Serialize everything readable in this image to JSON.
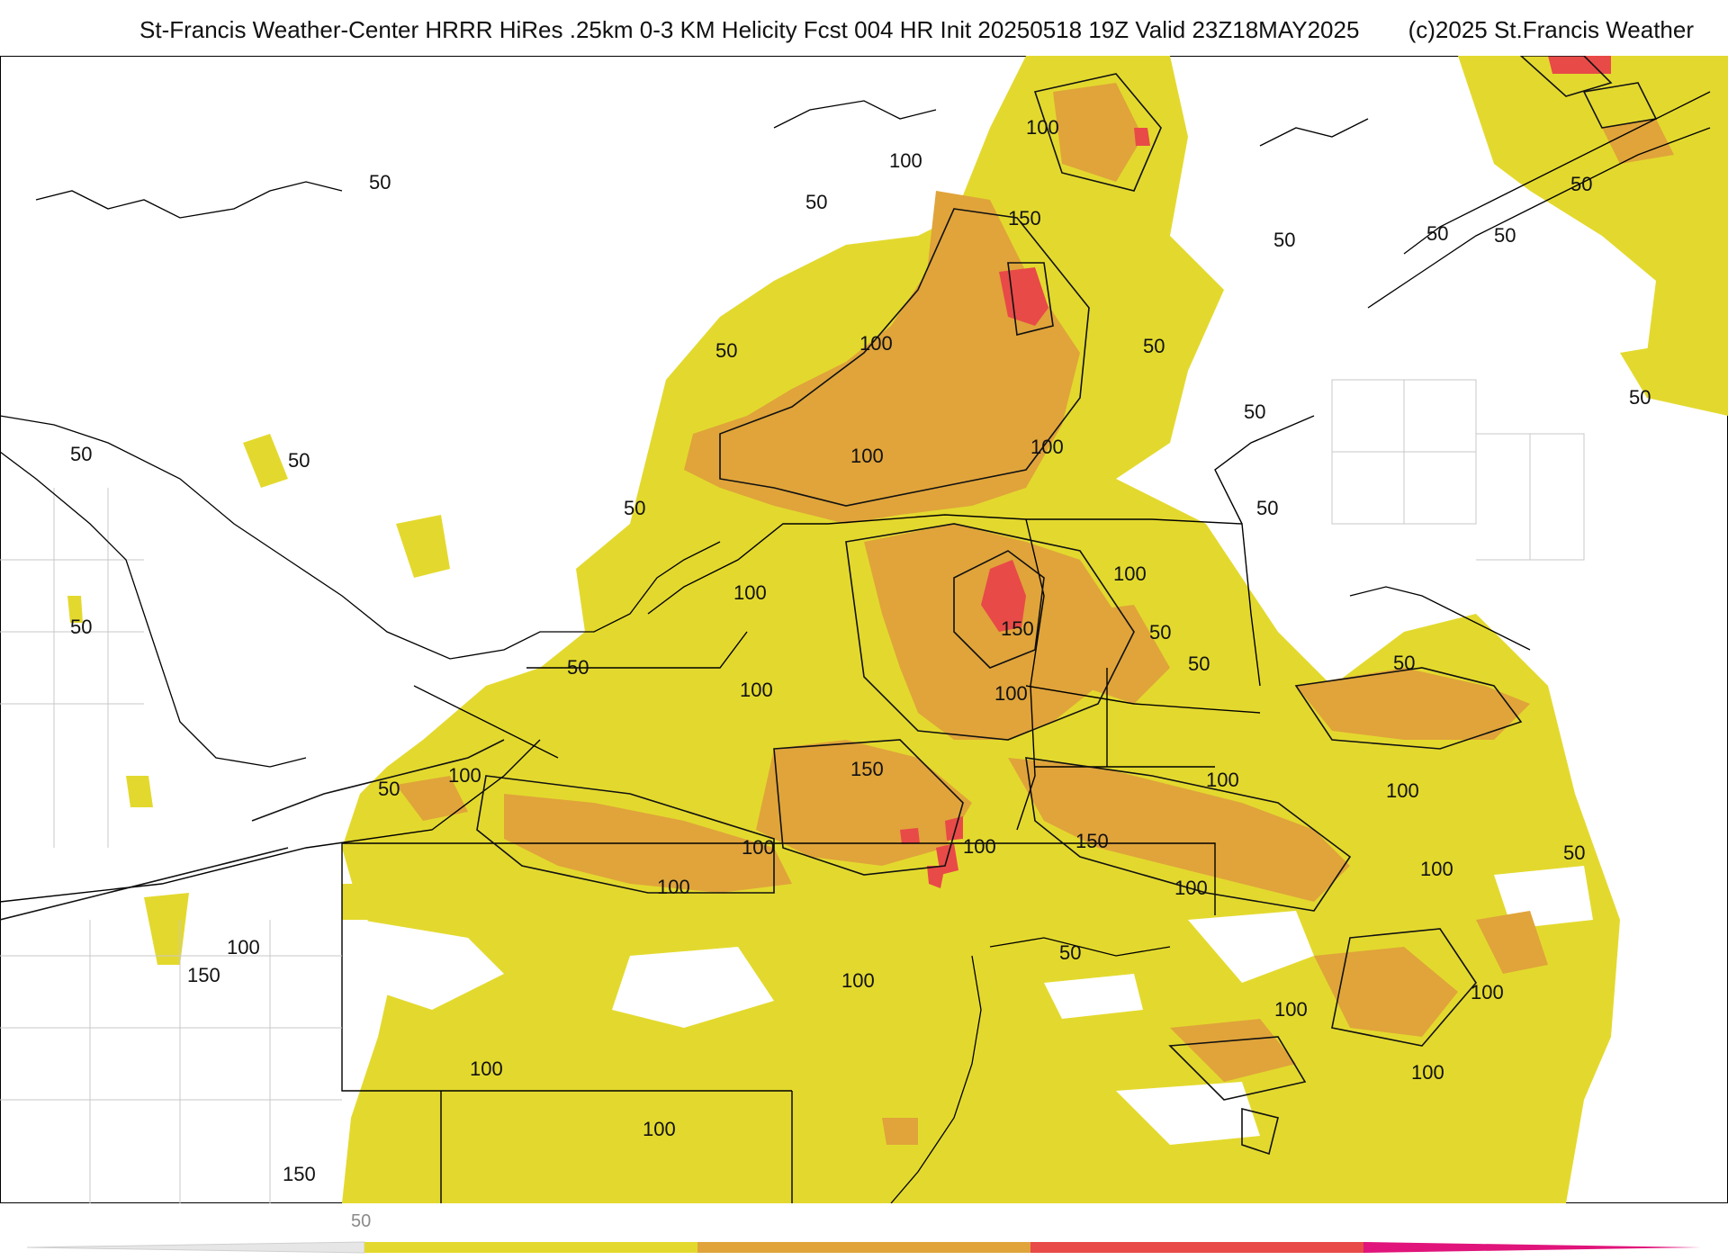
{
  "header": {
    "title": "St-Francis Weather-Center HRRR HiRes .25km 0-3 KM Helicity Fcst 004 HR Init 20250518 19Z  Valid 23Z18MAY2025",
    "copyright": "(c)2025 St.Francis Weather"
  },
  "colors": {
    "band_50": "#e3d92e",
    "band_100": "#e0a43a",
    "band_150": "#e84a48",
    "band_200": "#e0147a",
    "contour": "#111111",
    "boundary": "#000000",
    "county": "#c8c8c8"
  },
  "contour_labels": [
    {
      "value": "50"
    },
    {
      "value": "50"
    },
    {
      "value": "50"
    },
    {
      "value": "50"
    },
    {
      "value": "50"
    },
    {
      "value": "50"
    },
    {
      "value": "50"
    },
    {
      "value": "50"
    },
    {
      "value": "50"
    },
    {
      "value": "50"
    },
    {
      "value": "50"
    },
    {
      "value": "50"
    },
    {
      "value": "50"
    },
    {
      "value": "50"
    },
    {
      "value": "50"
    },
    {
      "value": "50"
    },
    {
      "value": "50"
    },
    {
      "value": "50"
    },
    {
      "value": "50"
    },
    {
      "value": "50"
    },
    {
      "value": "50"
    },
    {
      "value": "50"
    },
    {
      "value": "100"
    },
    {
      "value": "100"
    },
    {
      "value": "100"
    },
    {
      "value": "100"
    },
    {
      "value": "100"
    },
    {
      "value": "100"
    },
    {
      "value": "100"
    },
    {
      "value": "100"
    },
    {
      "value": "100"
    },
    {
      "value": "100"
    },
    {
      "value": "100"
    },
    {
      "value": "100"
    },
    {
      "value": "100"
    },
    {
      "value": "100"
    },
    {
      "value": "100"
    },
    {
      "value": "100"
    },
    {
      "value": "100"
    },
    {
      "value": "100"
    },
    {
      "value": "100"
    },
    {
      "value": "100"
    },
    {
      "value": "100"
    },
    {
      "value": "100"
    },
    {
      "value": "100"
    },
    {
      "value": "100"
    },
    {
      "value": "150"
    },
    {
      "value": "150"
    },
    {
      "value": "150"
    },
    {
      "value": "150"
    },
    {
      "value": "150"
    },
    {
      "value": "150"
    }
  ],
  "colorbar": {
    "tick_labels": [
      "50"
    ],
    "bands": [
      "band_50",
      "band_100",
      "band_150",
      "band_200"
    ]
  }
}
